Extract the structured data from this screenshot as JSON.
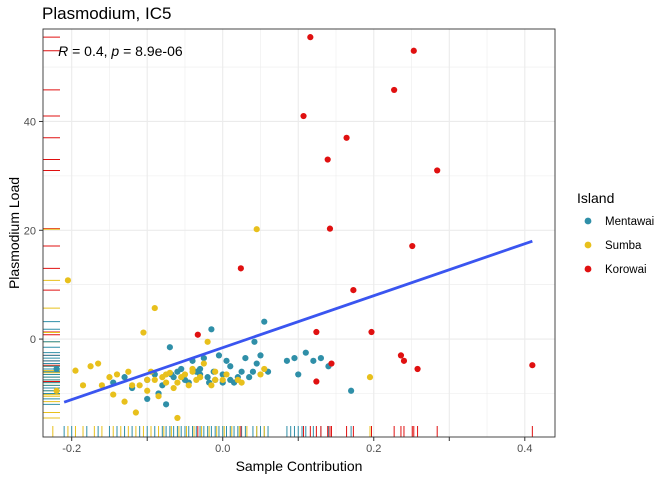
{
  "chart_data": {
    "type": "scatter",
    "title": "Plasmodium, IC5",
    "xlabel": "Sample Contribution",
    "ylabel": "Plasmodium Load",
    "xlim": [
      -0.238,
      0.44
    ],
    "ylim": [
      -18,
      57
    ],
    "xticks": [
      -0.2,
      -0.1,
      0.0,
      0.1,
      0.2,
      0.3,
      0.4
    ],
    "xtick_labels": [
      "-0.2",
      "",
      "0.0",
      "",
      "0.2",
      "",
      "0.4"
    ],
    "yticks": [
      0,
      20,
      40
    ],
    "ytick_labels": [
      "0",
      "20",
      "40"
    ],
    "grid": true,
    "legend": {
      "title": "Island",
      "placement": "right",
      "entries": [
        {
          "name": "Mentawai",
          "color": "#2f8fa8"
        },
        {
          "name": "Sumba",
          "color": "#e8c01c"
        },
        {
          "name": "Korowai",
          "color": "#e01010"
        }
      ]
    },
    "annotation": {
      "R_label": "R",
      "R_value": " = 0.4, ",
      "p_label": "p",
      "p_value": " = 8.9e-06",
      "x": -0.218,
      "y": 53
    },
    "regression": {
      "color": "#3a55f0",
      "x": [
        -0.21,
        0.41
      ],
      "y": [
        -11.6,
        18.0
      ]
    },
    "series": [
      {
        "name": "Mentawai",
        "color": "#2f8fa8",
        "x": [
          -0.22,
          -0.145,
          -0.13,
          -0.12,
          -0.1,
          -0.09,
          -0.08,
          -0.07,
          -0.065,
          -0.06,
          -0.055,
          -0.05,
          -0.045,
          -0.04,
          -0.035,
          -0.03,
          -0.025,
          -0.02,
          -0.018,
          -0.015,
          -0.012,
          -0.01,
          -0.005,
          0.0,
          0.005,
          0.01,
          0.015,
          0.02,
          0.025,
          0.03,
          0.035,
          0.04,
          0.045,
          0.05,
          0.055,
          0.06,
          0.085,
          0.095,
          0.1,
          0.11,
          0.12,
          0.13,
          0.14,
          0.17,
          -0.1,
          -0.085,
          -0.075,
          -0.068,
          0.01,
          0.0,
          -0.03,
          0.042
        ],
        "y": [
          -5.5,
          -8,
          -7,
          -9,
          -7.5,
          -6.5,
          -8.5,
          -1.5,
          -7,
          -6,
          -5.5,
          -7.5,
          -8,
          -4,
          -6,
          -6.5,
          -3.5,
          -7,
          -8,
          1.8,
          -6,
          -7.5,
          -3,
          -6.5,
          -4,
          -5,
          -8,
          -7,
          -6,
          -3.5,
          -7,
          -6,
          -4.5,
          -3,
          3.2,
          -6,
          -4,
          -3.5,
          -6.5,
          -2.5,
          -4,
          -3.5,
          -5,
          -9.5,
          -11,
          -10,
          -12,
          -6.5,
          -7.5,
          -8,
          -5.5,
          -0.5
        ]
      },
      {
        "name": "Sumba",
        "color": "#e8c01c",
        "x": [
          -0.22,
          -0.205,
          -0.195,
          -0.185,
          -0.175,
          -0.165,
          -0.16,
          -0.15,
          -0.145,
          -0.14,
          -0.13,
          -0.125,
          -0.12,
          -0.115,
          -0.11,
          -0.105,
          -0.1,
          -0.095,
          -0.09,
          -0.085,
          -0.08,
          -0.075,
          -0.07,
          -0.065,
          -0.06,
          -0.055,
          -0.05,
          -0.045,
          -0.04,
          -0.035,
          -0.03,
          -0.025,
          -0.02,
          -0.015,
          -0.01,
          0.005,
          0.02,
          0.025,
          0.045,
          0.055,
          0.195,
          -0.1,
          -0.09,
          -0.075,
          -0.06,
          -0.04,
          -0.03,
          -0.01,
          0.0,
          0.05
        ],
        "y": [
          -9.5,
          10.8,
          -5.8,
          -8.5,
          -5.0,
          -4.5,
          -8.5,
          -7.0,
          -10.2,
          -6.5,
          -11.5,
          -6.0,
          -8.5,
          -13.5,
          -8.5,
          1.2,
          -7.5,
          -6.0,
          5.7,
          -10.5,
          -7.0,
          -8.0,
          -6.2,
          -9.0,
          -14.5,
          -7.0,
          -6.5,
          -8.5,
          -6.0,
          -7.5,
          -7.0,
          -4.5,
          -0.5,
          -8.5,
          -7.5,
          -6.5,
          -7.5,
          -8.0,
          20.2,
          -5.5,
          -7.0,
          -9.5,
          -7.5,
          -6.5,
          -8.0,
          -5.5,
          -7.0,
          -6.0,
          -7.5,
          -6.5
        ]
      },
      {
        "name": "Korowai",
        "color": "#e01010",
        "x": [
          0.116,
          0.253,
          0.227,
          0.107,
          0.164,
          0.139,
          0.284,
          0.142,
          0.251,
          0.024,
          0.173,
          0.124,
          0.197,
          -0.033,
          0.236,
          0.258,
          0.41,
          0.144,
          0.124,
          0.24
        ],
        "y": [
          55.5,
          53.0,
          45.8,
          41.0,
          37.0,
          33.0,
          31.0,
          20.3,
          17.1,
          13.0,
          9.0,
          1.3,
          1.3,
          0.8,
          -3.0,
          -5.5,
          -4.8,
          -4.5,
          -7.8,
          -4.0
        ]
      }
    ],
    "rug_x": [
      {
        "color": "#2f8fa8",
        "x": [
          -0.21,
          -0.2,
          -0.18,
          -0.165,
          -0.15,
          -0.14,
          -0.13,
          -0.12,
          -0.11,
          -0.1,
          -0.09,
          -0.08,
          -0.075,
          -0.07,
          -0.065,
          -0.06,
          -0.055,
          -0.05,
          -0.045,
          -0.04,
          -0.035,
          -0.03,
          -0.025,
          -0.02,
          -0.015,
          -0.01,
          -0.005,
          0.0,
          0.005,
          0.01,
          0.015,
          0.02,
          0.025,
          0.03,
          0.04,
          0.045,
          0.05,
          0.055,
          0.06,
          0.085,
          0.09,
          0.095,
          0.1,
          0.105,
          0.11,
          0.12,
          0.13,
          0.14,
          0.17
        ]
      },
      {
        "color": "#e8c01c",
        "x": [
          -0.225,
          -0.205,
          -0.195,
          -0.185,
          -0.17,
          -0.16,
          -0.145,
          -0.135,
          -0.125,
          -0.115,
          -0.105,
          -0.095,
          -0.085,
          -0.078,
          -0.068,
          -0.058,
          -0.048,
          -0.038,
          -0.028,
          -0.018,
          -0.008,
          0.002,
          0.012,
          0.022,
          0.032,
          0.045,
          0.055,
          0.195
        ]
      },
      {
        "color": "#e01010",
        "x": [
          -0.033,
          0.024,
          0.107,
          0.116,
          0.124,
          0.13,
          0.139,
          0.142,
          0.144,
          0.164,
          0.173,
          0.197,
          0.227,
          0.236,
          0.24,
          0.251,
          0.253,
          0.258,
          0.284,
          0.41
        ]
      }
    ],
    "rug_y": [
      {
        "color": "#e01010",
        "y": [
          55.5,
          53.0,
          45.8,
          41.0,
          37.0,
          33.0,
          31.0,
          20.3,
          17.1,
          13.0,
          9.0,
          1.3,
          0.8,
          -3.0,
          -4.0,
          -4.5,
          -4.8,
          -5.5,
          -7.8
        ]
      },
      {
        "color": "#e8c01c",
        "y": [
          20.2,
          10.8,
          5.7,
          1.2,
          -0.5,
          -4.5,
          -5.0,
          -5.5,
          -5.8,
          -6.0,
          -6.2,
          -6.5,
          -7.0,
          -7.5,
          -8.0,
          -8.5,
          -9.0,
          -9.5,
          -10.2,
          -10.5,
          -11.5,
          -13.5,
          -14.5
        ]
      },
      {
        "color": "#2f8fa8",
        "y": [
          3.2,
          1.8,
          -0.5,
          -1.5,
          -2.5,
          -3.0,
          -3.5,
          -4.0,
          -4.5,
          -5.0,
          -5.5,
          -6.0,
          -6.5,
          -7.0,
          -7.5,
          -8.0,
          -8.5,
          -9.0,
          -9.5,
          -10.0,
          -11.0,
          -12.0
        ]
      }
    ]
  }
}
